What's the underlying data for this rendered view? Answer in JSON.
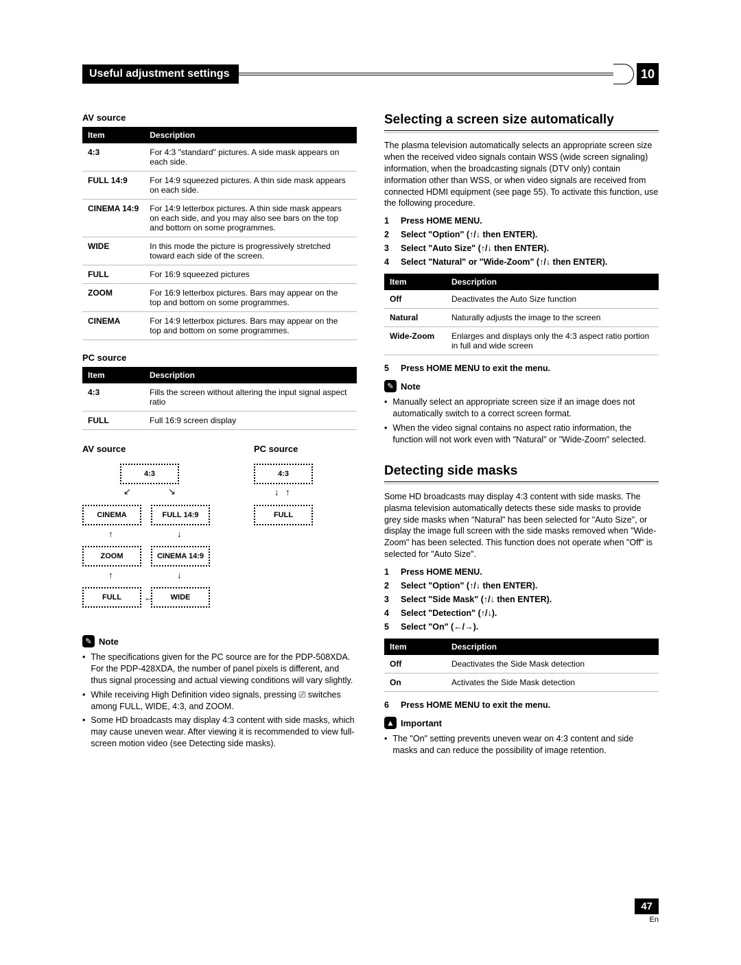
{
  "header": {
    "title": "Useful adjustment settings",
    "chapter": "10"
  },
  "footer": {
    "page": "47",
    "lang": "En"
  },
  "left": {
    "av_source_label": "AV source",
    "pc_source_label": "PC source",
    "table_header_item": "Item",
    "table_header_desc": "Description",
    "av_table": [
      {
        "item": "4:3",
        "desc": "For 4:3 \"standard\" pictures. A side mask appears on each side."
      },
      {
        "item": "FULL 14:9",
        "desc": "For 14:9 squeezed pictures. A thin side mask appears on each side."
      },
      {
        "item": "CINEMA 14:9",
        "desc": "For 14:9 letterbox pictures. A thin side mask appears on each side, and you may also see bars on the top and bottom on some programmes."
      },
      {
        "item": "WIDE",
        "desc": "In this mode the picture is progressively stretched toward each side of the screen."
      },
      {
        "item": "FULL",
        "desc": "For 16:9 squeezed pictures"
      },
      {
        "item": "ZOOM",
        "desc": "For 16:9 letterbox pictures. Bars may appear on the top and bottom on some programmes."
      },
      {
        "item": "CINEMA",
        "desc": "For 14:9 letterbox pictures. Bars may appear on the top and bottom on some programmes."
      }
    ],
    "pc_table": [
      {
        "item": "4:3",
        "desc": "Fills the screen without altering the input signal aspect ratio"
      },
      {
        "item": "FULL",
        "desc": "Full 16:9 screen display"
      }
    ],
    "diagram": {
      "av_label": "AV source",
      "pc_label": "PC source",
      "boxes": {
        "b43": "4:3",
        "cinema": "CINEMA",
        "full149": "FULL 14:9",
        "zoom": "ZOOM",
        "cinema149": "CINEMA 14:9",
        "full": "FULL",
        "wide": "WIDE"
      }
    },
    "note_label": "Note",
    "notes": [
      "The specifications given for the PC source are for the PDP-508XDA. For the PDP-428XDA, the number of panel pixels is different, and thus signal processing and actual viewing conditions will vary slightly.",
      "While receiving High Definition video signals, pressing ⎚ switches among FULL, WIDE, 4:3, and ZOOM.",
      "Some HD broadcasts may display 4:3 content with side masks, which may cause uneven wear. After viewing it is recommended to view full-screen motion video (see Detecting side masks)."
    ]
  },
  "right": {
    "sec1_title": "Selecting a screen size automatically",
    "sec1_body": "The plasma television automatically selects an appropriate screen size when the received video signals contain WSS (wide screen signaling) information, when the broadcasting signals (DTV only) contain information other than WSS, or when video signals are received from connected HDMI equipment (see page 55). To activate this function, use the following procedure.",
    "sec1_steps": [
      "Press HOME MENU.",
      "Select \"Option\" (↑/↓ then ENTER).",
      "Select \"Auto Size\" (↑/↓ then ENTER).",
      "Select \"Natural\" or \"Wide-Zoom\" (↑/↓ then ENTER)."
    ],
    "sec1_table": [
      {
        "item": "Off",
        "desc": "Deactivates the Auto Size function"
      },
      {
        "item": "Natural",
        "desc": "Naturally adjusts the image to the screen"
      },
      {
        "item": "Wide-Zoom",
        "desc": "Enlarges and displays only the 4:3 aspect ratio portion in full and wide screen"
      }
    ],
    "sec1_step5": "Press HOME MENU to exit the menu.",
    "sec1_note_label": "Note",
    "sec1_notes": [
      "Manually select an appropriate screen size if an image does not automatically switch to a correct screen format.",
      "When the video signal contains no aspect ratio information, the function will not work even with \"Natural\" or \"Wide-Zoom\" selected."
    ],
    "sec2_title": "Detecting side masks",
    "sec2_body": "Some HD broadcasts may display 4:3 content with side masks. The plasma television automatically detects these side masks to provide grey side masks when \"Natural\" has been selected for \"Auto Size\", or display the image full screen with the side masks removed when \"Wide-Zoom\" has been selected. This function does not operate when \"Off\" is selected for \"Auto Size\".",
    "sec2_steps": [
      "Press HOME MENU.",
      "Select \"Option\" (↑/↓ then ENTER).",
      "Select \"Side Mask\" (↑/↓ then ENTER).",
      "Select \"Detection\" (↑/↓).",
      "Select \"On\" (←/→)."
    ],
    "sec2_table": [
      {
        "item": "Off",
        "desc": "Deactivates the Side Mask detection"
      },
      {
        "item": "On",
        "desc": "Activates the Side Mask detection"
      }
    ],
    "sec2_step6": "Press HOME MENU to exit the menu.",
    "important_label": "Important",
    "important_note": "The \"On\" setting prevents uneven wear on 4:3 content and side masks and can reduce the possibility of image retention."
  }
}
